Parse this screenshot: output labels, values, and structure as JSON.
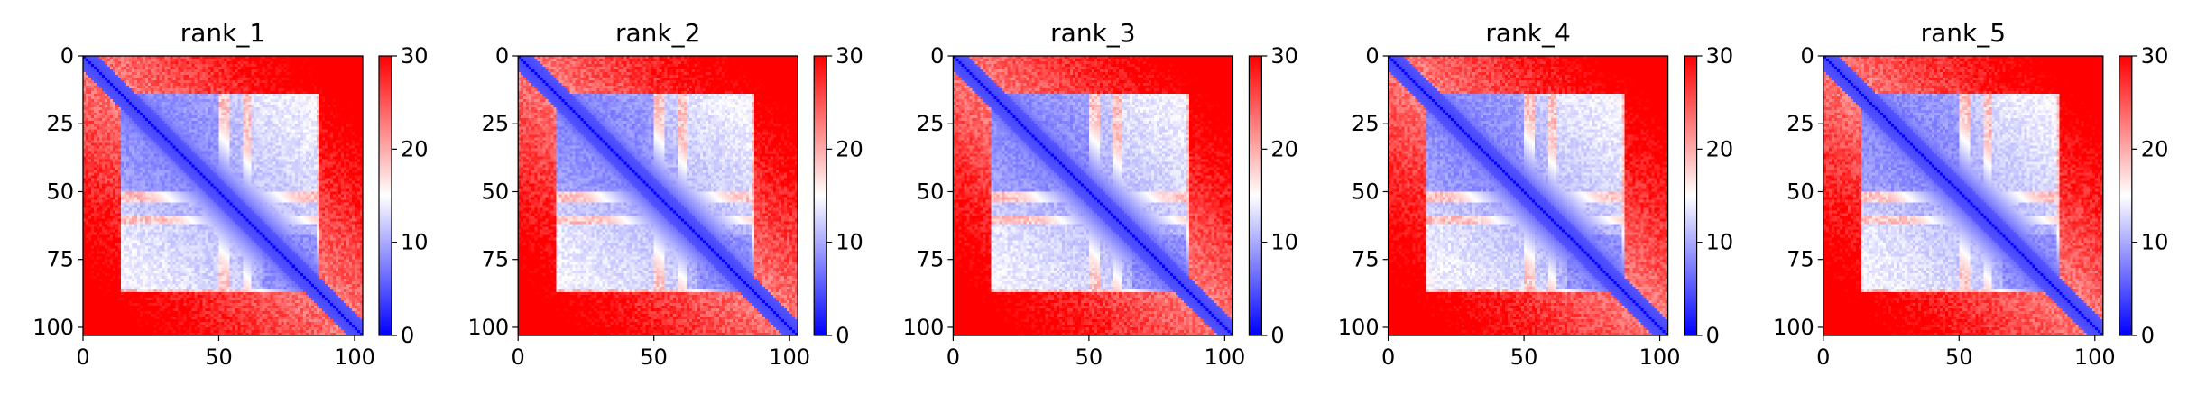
{
  "chart_data": [
    {
      "type": "heatmap",
      "title": "rank_1",
      "xlim": [
        0,
        103
      ],
      "ylim": [
        103,
        0
      ],
      "xticks": [
        0,
        50,
        100
      ],
      "yticks": [
        0,
        25,
        50,
        75,
        100
      ],
      "colorbar": {
        "min": 0,
        "max": 30,
        "ticks": [
          0,
          10,
          20,
          30
        ],
        "colormap": "bwr"
      },
      "blocks": [
        [
          14,
          49
        ],
        [
          54,
          58
        ],
        [
          62,
          65
        ],
        [
          65,
          85
        ]
      ],
      "x": [
        0,
        10,
        20,
        30,
        40,
        50,
        60,
        70,
        80,
        90,
        100
      ],
      "y": [
        0,
        10,
        20,
        30,
        40,
        50,
        60,
        70,
        80,
        90,
        100
      ],
      "sample_matrix": [
        [
          0,
          3,
          16,
          25,
          27,
          27,
          27,
          28,
          28,
          30,
          30
        ],
        [
          3,
          0,
          6,
          12,
          15,
          14,
          16,
          16,
          18,
          25,
          30
        ],
        [
          16,
          6,
          0,
          5,
          8,
          9,
          14,
          10,
          12,
          23,
          30
        ],
        [
          25,
          12,
          5,
          0,
          4,
          7,
          13,
          8,
          9,
          22,
          30
        ],
        [
          27,
          15,
          8,
          4,
          0,
          4,
          12,
          7,
          8,
          21,
          29
        ],
        [
          27,
          14,
          9,
          7,
          4,
          0,
          6,
          7,
          8,
          20,
          29
        ],
        [
          27,
          16,
          14,
          13,
          12,
          6,
          0,
          5,
          7,
          17,
          26
        ],
        [
          28,
          16,
          10,
          8,
          7,
          7,
          5,
          0,
          4,
          12,
          24
        ],
        [
          28,
          18,
          12,
          9,
          8,
          8,
          7,
          4,
          0,
          5,
          15
        ],
        [
          30,
          25,
          23,
          22,
          21,
          20,
          17,
          12,
          5,
          0,
          6
        ],
        [
          30,
          30,
          30,
          30,
          29,
          29,
          26,
          24,
          15,
          6,
          0
        ]
      ]
    },
    {
      "type": "heatmap",
      "title": "rank_2",
      "xlim": [
        0,
        103
      ],
      "ylim": [
        103,
        0
      ],
      "xticks": [
        0,
        50,
        100
      ],
      "yticks": [
        0,
        25,
        50,
        75,
        100
      ],
      "colorbar": {
        "min": 0,
        "max": 30,
        "ticks": [
          0,
          10,
          20,
          30
        ],
        "colormap": "bwr"
      },
      "blocks": [
        [
          14,
          49
        ],
        [
          54,
          58
        ],
        [
          62,
          65
        ],
        [
          65,
          85
        ]
      ],
      "x": [
        0,
        10,
        20,
        30,
        40,
        50,
        60,
        70,
        80,
        90,
        100
      ],
      "y": [
        0,
        10,
        20,
        30,
        40,
        50,
        60,
        70,
        80,
        90,
        100
      ],
      "sample_matrix": [
        [
          0,
          3,
          16,
          25,
          27,
          27,
          27,
          28,
          28,
          30,
          30
        ],
        [
          3,
          0,
          6,
          12,
          15,
          14,
          17,
          16,
          18,
          25,
          30
        ],
        [
          16,
          6,
          0,
          5,
          8,
          9,
          15,
          10,
          12,
          23,
          30
        ],
        [
          25,
          12,
          5,
          0,
          4,
          7,
          14,
          8,
          9,
          22,
          30
        ],
        [
          27,
          15,
          8,
          4,
          0,
          4,
          13,
          7,
          8,
          21,
          29
        ],
        [
          27,
          14,
          9,
          7,
          4,
          0,
          6,
          7,
          8,
          20,
          29
        ],
        [
          27,
          17,
          15,
          14,
          13,
          6,
          0,
          5,
          7,
          17,
          26
        ],
        [
          28,
          16,
          10,
          8,
          7,
          7,
          5,
          0,
          4,
          12,
          24
        ],
        [
          28,
          18,
          12,
          9,
          8,
          8,
          7,
          4,
          0,
          5,
          15
        ],
        [
          30,
          25,
          23,
          22,
          21,
          20,
          17,
          12,
          5,
          0,
          6
        ],
        [
          30,
          30,
          30,
          30,
          29,
          29,
          26,
          24,
          15,
          6,
          0
        ]
      ]
    },
    {
      "type": "heatmap",
      "title": "rank_3",
      "xlim": [
        0,
        103
      ],
      "ylim": [
        103,
        0
      ],
      "xticks": [
        0,
        50,
        100
      ],
      "yticks": [
        0,
        25,
        50,
        75,
        100
      ],
      "colorbar": {
        "min": 0,
        "max": 30,
        "ticks": [
          0,
          10,
          20,
          30
        ],
        "colormap": "bwr"
      },
      "blocks": [
        [
          14,
          49
        ],
        [
          54,
          58
        ],
        [
          62,
          65
        ],
        [
          65,
          85
        ]
      ],
      "x": [
        0,
        10,
        20,
        30,
        40,
        50,
        60,
        70,
        80,
        90,
        100
      ],
      "y": [
        0,
        10,
        20,
        30,
        40,
        50,
        60,
        70,
        80,
        90,
        100
      ],
      "sample_matrix": [
        [
          0,
          3,
          16,
          25,
          27,
          27,
          27,
          28,
          28,
          30,
          30
        ],
        [
          3,
          0,
          6,
          12,
          15,
          14,
          16,
          16,
          18,
          25,
          30
        ],
        [
          16,
          6,
          0,
          5,
          8,
          9,
          14,
          10,
          12,
          23,
          30
        ],
        [
          25,
          12,
          5,
          0,
          4,
          7,
          13,
          8,
          9,
          22,
          30
        ],
        [
          27,
          15,
          8,
          4,
          0,
          4,
          12,
          7,
          8,
          21,
          29
        ],
        [
          27,
          14,
          9,
          7,
          4,
          0,
          6,
          7,
          8,
          20,
          29
        ],
        [
          27,
          16,
          14,
          13,
          12,
          6,
          0,
          5,
          7,
          17,
          26
        ],
        [
          28,
          16,
          10,
          8,
          7,
          7,
          5,
          0,
          4,
          12,
          24
        ],
        [
          28,
          18,
          12,
          9,
          8,
          8,
          7,
          4,
          0,
          5,
          15
        ],
        [
          30,
          25,
          23,
          22,
          21,
          20,
          17,
          12,
          5,
          0,
          6
        ],
        [
          30,
          30,
          30,
          30,
          29,
          29,
          26,
          24,
          15,
          6,
          0
        ]
      ]
    },
    {
      "type": "heatmap",
      "title": "rank_4",
      "xlim": [
        0,
        103
      ],
      "ylim": [
        103,
        0
      ],
      "xticks": [
        0,
        50,
        100
      ],
      "yticks": [
        0,
        25,
        50,
        75,
        100
      ],
      "colorbar": {
        "min": 0,
        "max": 30,
        "ticks": [
          0,
          10,
          20,
          30
        ],
        "colormap": "bwr"
      },
      "blocks": [
        [
          14,
          49
        ],
        [
          54,
          58
        ],
        [
          62,
          65
        ],
        [
          65,
          85
        ]
      ],
      "x": [
        0,
        10,
        20,
        30,
        40,
        50,
        60,
        70,
        80,
        90,
        100
      ],
      "y": [
        0,
        10,
        20,
        30,
        40,
        50,
        60,
        70,
        80,
        90,
        100
      ],
      "sample_matrix": [
        [
          0,
          3,
          16,
          25,
          27,
          27,
          27,
          28,
          28,
          30,
          30
        ],
        [
          3,
          0,
          6,
          12,
          15,
          14,
          16,
          16,
          18,
          25,
          30
        ],
        [
          16,
          6,
          0,
          5,
          8,
          9,
          14,
          10,
          12,
          23,
          30
        ],
        [
          25,
          12,
          5,
          0,
          4,
          7,
          13,
          8,
          9,
          22,
          30
        ],
        [
          27,
          15,
          8,
          4,
          0,
          4,
          12,
          7,
          8,
          21,
          29
        ],
        [
          27,
          14,
          9,
          7,
          4,
          0,
          6,
          7,
          8,
          20,
          29
        ],
        [
          27,
          16,
          14,
          13,
          12,
          6,
          0,
          5,
          7,
          17,
          26
        ],
        [
          28,
          16,
          10,
          8,
          7,
          7,
          5,
          0,
          4,
          12,
          24
        ],
        [
          28,
          18,
          12,
          9,
          8,
          8,
          7,
          4,
          0,
          5,
          15
        ],
        [
          30,
          25,
          23,
          22,
          21,
          20,
          17,
          12,
          5,
          0,
          6
        ],
        [
          30,
          30,
          30,
          30,
          29,
          29,
          26,
          24,
          15,
          6,
          0
        ]
      ]
    },
    {
      "type": "heatmap",
      "title": "rank_5",
      "xlim": [
        0,
        103
      ],
      "ylim": [
        103,
        0
      ],
      "xticks": [
        0,
        50,
        100
      ],
      "yticks": [
        0,
        25,
        50,
        75,
        100
      ],
      "colorbar": {
        "min": 0,
        "max": 30,
        "ticks": [
          0,
          10,
          20,
          30
        ],
        "colormap": "bwr"
      },
      "blocks": [
        [
          14,
          49
        ],
        [
          54,
          58
        ],
        [
          62,
          65
        ],
        [
          65,
          85
        ]
      ],
      "x": [
        0,
        10,
        20,
        30,
        40,
        50,
        60,
        70,
        80,
        90,
        100
      ],
      "y": [
        0,
        10,
        20,
        30,
        40,
        50,
        60,
        70,
        80,
        90,
        100
      ],
      "sample_matrix": [
        [
          0,
          3,
          16,
          25,
          27,
          27,
          27,
          28,
          28,
          30,
          30
        ],
        [
          3,
          0,
          6,
          12,
          15,
          14,
          16,
          16,
          18,
          25,
          30
        ],
        [
          16,
          6,
          0,
          5,
          8,
          9,
          14,
          10,
          12,
          23,
          30
        ],
        [
          25,
          12,
          5,
          0,
          4,
          7,
          13,
          8,
          9,
          22,
          30
        ],
        [
          27,
          15,
          8,
          4,
          0,
          4,
          12,
          7,
          8,
          21,
          29
        ],
        [
          27,
          14,
          9,
          7,
          4,
          0,
          6,
          7,
          8,
          20,
          29
        ],
        [
          27,
          16,
          14,
          13,
          12,
          6,
          0,
          5,
          7,
          17,
          26
        ],
        [
          28,
          16,
          10,
          8,
          7,
          7,
          5,
          0,
          4,
          12,
          24
        ],
        [
          28,
          18,
          12,
          9,
          8,
          8,
          7,
          4,
          0,
          5,
          15
        ],
        [
          30,
          25,
          23,
          22,
          21,
          20,
          17,
          12,
          5,
          0,
          6
        ],
        [
          30,
          30,
          30,
          30,
          29,
          29,
          26,
          24,
          15,
          6,
          0
        ]
      ]
    }
  ]
}
